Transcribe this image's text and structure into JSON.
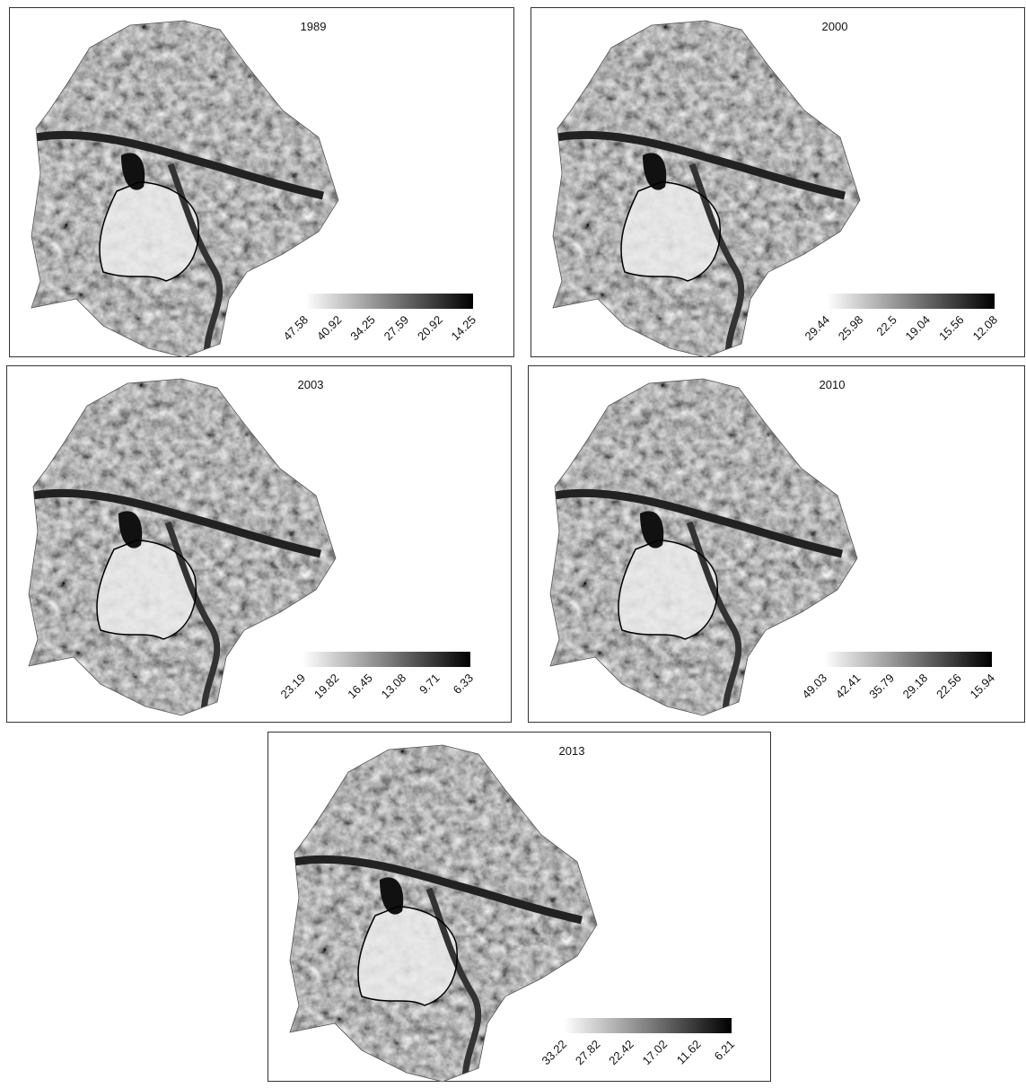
{
  "panels": [
    {
      "title": "1989",
      "colorbar": {
        "ticks": [
          47.58,
          40.92,
          34.25,
          27.59,
          20.92,
          14.25
        ]
      }
    },
    {
      "title": "2000",
      "colorbar": {
        "ticks": [
          29.44,
          25.98,
          22.5,
          19.04,
          15.56,
          12.08
        ]
      }
    },
    {
      "title": "2003",
      "colorbar": {
        "ticks": [
          23.19,
          19.82,
          16.45,
          13.08,
          9.71,
          6.33
        ]
      }
    },
    {
      "title": "2010",
      "colorbar": {
        "ticks": [
          49.03,
          42.41,
          35.79,
          29.18,
          22.56,
          15.94
        ]
      }
    },
    {
      "title": "2013",
      "colorbar": {
        "ticks": [
          33.22,
          27.82,
          22.42,
          17.02,
          11.62,
          6.21
        ]
      }
    }
  ]
}
